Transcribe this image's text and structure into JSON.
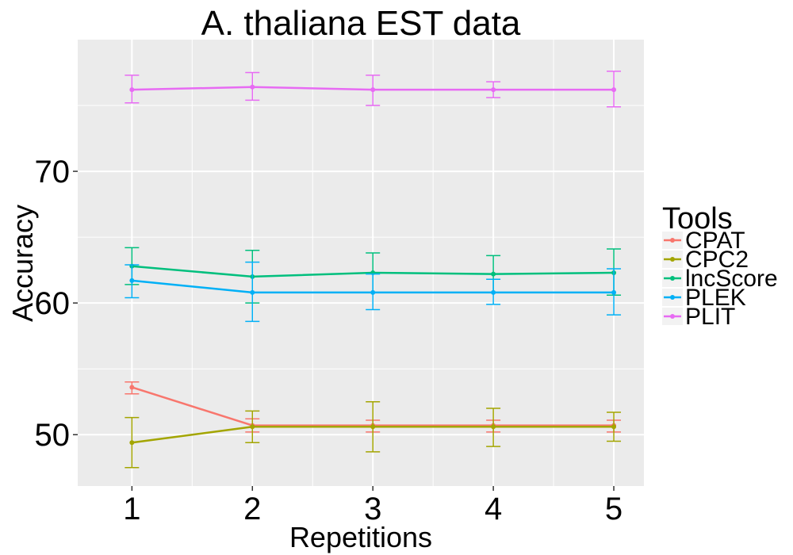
{
  "chart_data": {
    "type": "line",
    "title": "A. thaliana EST data",
    "xlabel": "Repetitions",
    "ylabel": "Accuracy",
    "x": [
      1,
      2,
      3,
      4,
      5
    ],
    "xticks": [
      "1",
      "2",
      "3",
      "4",
      "5"
    ],
    "xlim": [
      0.55,
      5.25
    ],
    "ylim": [
      46.1,
      80.0
    ],
    "yticks": [
      "50",
      "60",
      "70"
    ],
    "grid": true,
    "legend": {
      "title": "Tools",
      "position": "right"
    },
    "series": [
      {
        "name": "CPAT",
        "color": "#F8766D",
        "values": [
          53.6,
          50.7,
          50.7,
          50.7,
          50.7
        ],
        "lower": [
          53.1,
          50.2,
          50.2,
          50.2,
          50.2
        ],
        "upper": [
          54.0,
          51.2,
          51.1,
          51.1,
          51.1
        ]
      },
      {
        "name": "CPC2",
        "color": "#A3A500",
        "values": [
          49.4,
          50.6,
          50.6,
          50.6,
          50.6
        ],
        "lower": [
          47.5,
          49.4,
          48.7,
          49.1,
          49.5
        ],
        "upper": [
          51.3,
          51.8,
          52.5,
          52.0,
          51.7
        ]
      },
      {
        "name": "lncScore",
        "color": "#00BF7D",
        "values": [
          62.8,
          62.0,
          62.3,
          62.2,
          62.3
        ],
        "lower": [
          61.4,
          60.0,
          60.8,
          60.8,
          60.6
        ],
        "upper": [
          64.2,
          64.0,
          63.8,
          63.6,
          64.1
        ]
      },
      {
        "name": "PLEK",
        "color": "#00B0F6",
        "values": [
          61.7,
          60.8,
          60.8,
          60.8,
          60.8
        ],
        "lower": [
          60.4,
          58.6,
          59.5,
          59.9,
          59.1
        ],
        "upper": [
          62.9,
          63.1,
          62.2,
          61.8,
          62.6
        ]
      },
      {
        "name": "PLIT",
        "color": "#E76BF3",
        "values": [
          76.2,
          76.4,
          76.2,
          76.2,
          76.2
        ],
        "lower": [
          75.2,
          75.4,
          75.0,
          75.6,
          74.9
        ],
        "upper": [
          77.3,
          77.5,
          77.3,
          76.8,
          77.6
        ]
      }
    ]
  }
}
